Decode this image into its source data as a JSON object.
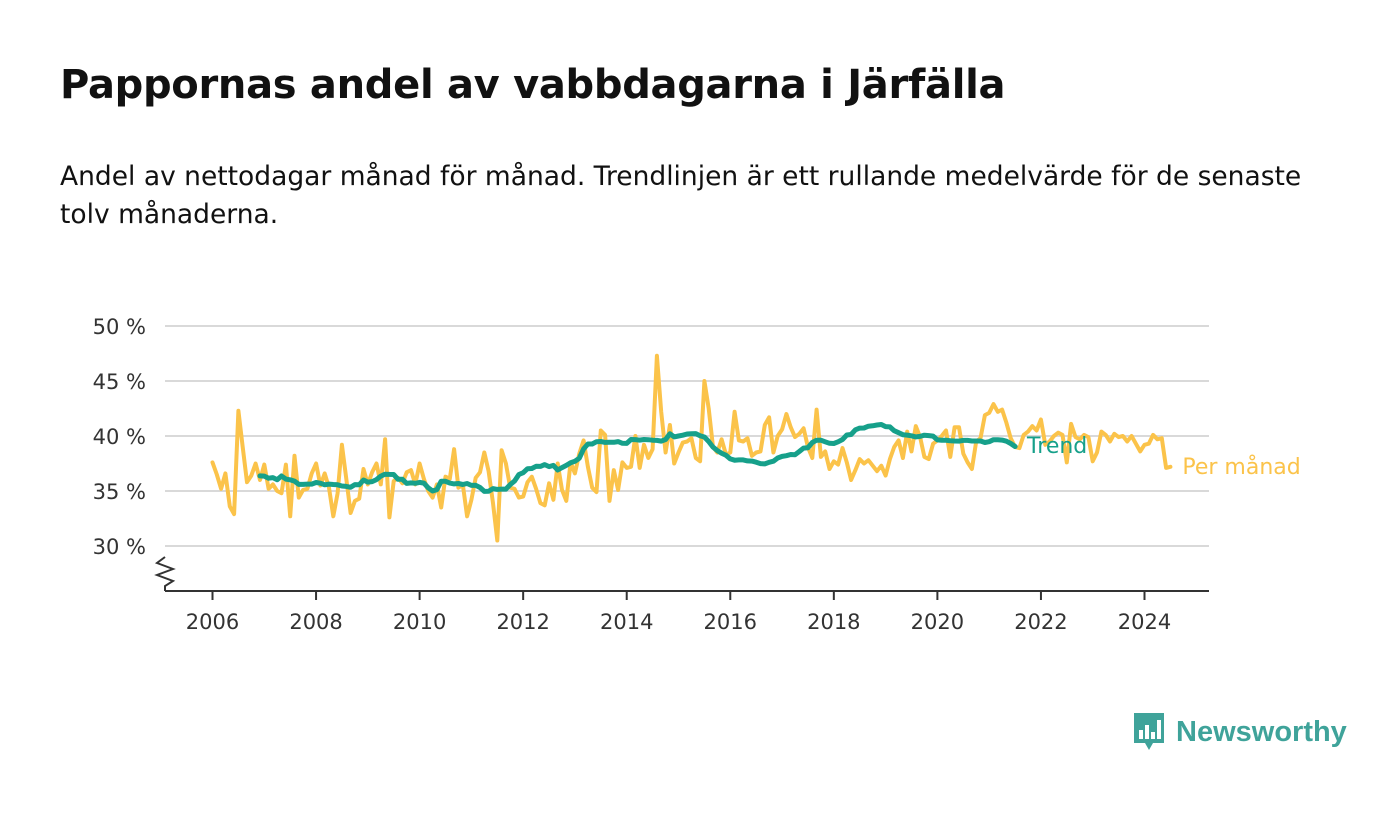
{
  "title": "Pappornas andel av vabbdagarna i Järfälla",
  "subtitle": "Andel av nettodagar månad för månad. Trendlinjen är ett rullande medelvärde för de senaste tolv månaderna.",
  "brand": {
    "name": "Newsworthy",
    "icon": "newsworthy-logo-icon",
    "color": "#3fa39a"
  },
  "chart_data": {
    "type": "line",
    "x_start": "2006-01",
    "x_step": "month",
    "xlim": [
      2006,
      2024.4
    ],
    "ylim": [
      30,
      50
    ],
    "y_axis_break": true,
    "yticks": [
      30,
      35,
      40,
      45,
      50
    ],
    "ytick_labels": [
      "30 %",
      "35 %",
      "40 %",
      "45 %",
      "50 %"
    ],
    "xticks": [
      2006,
      2008,
      2010,
      2012,
      2014,
      2016,
      2018,
      2020,
      2022,
      2024
    ],
    "xtick_labels": [
      "2006",
      "2008",
      "2010",
      "2012",
      "2014",
      "2016",
      "2018",
      "2020",
      "2022",
      "2024"
    ],
    "grid": true,
    "legend": "direct labels at line ends (right)",
    "series": [
      {
        "name": "Per månad",
        "color": "#fbc34a",
        "values": [
          37.6,
          36.5,
          35.2,
          36.6,
          33.6,
          32.9,
          42.3,
          39.0,
          35.8,
          36.4,
          37.5,
          36.0,
          37.4,
          35.2,
          35.6,
          35.0,
          34.8,
          37.4,
          32.7,
          38.2,
          34.4,
          35.1,
          35.2,
          36.6,
          37.5,
          35.5,
          36.6,
          35.3,
          32.7,
          34.8,
          39.2,
          36.1,
          33.0,
          34.1,
          34.3,
          37.0,
          35.6,
          36.7,
          37.5,
          35.6,
          39.7,
          32.6,
          35.9,
          36.2,
          35.7,
          36.7,
          36.9,
          35.6,
          37.5,
          36.1,
          35.0,
          34.4,
          35.6,
          33.5,
          36.3,
          36.1,
          38.8,
          35.3,
          35.6,
          32.7,
          34.2,
          36.2,
          36.7,
          38.5,
          36.8,
          33.9,
          30.5,
          38.7,
          37.5,
          35.3,
          35.2,
          34.4,
          34.5,
          35.8,
          36.3,
          35.2,
          33.9,
          33.7,
          35.7,
          34.2,
          37.5,
          35.1,
          34.1,
          37.6,
          36.6,
          38.4,
          39.6,
          37.2,
          35.3,
          34.9,
          40.5,
          40.1,
          34.1,
          36.9,
          35.1,
          37.6,
          37.1,
          37.2,
          40.0,
          37.1,
          39.2,
          38.0,
          38.8,
          47.3,
          42.2,
          38.5,
          41.0,
          37.5,
          38.5,
          39.4,
          39.5,
          39.8,
          38.0,
          37.7,
          45.0,
          42.5,
          39.0,
          38.5,
          39.7,
          38.3,
          38.5,
          42.2,
          39.6,
          39.5,
          39.8,
          38.2,
          38.5,
          38.6,
          41.0,
          41.7,
          38.5,
          40.0,
          40.6,
          42.0,
          40.8,
          39.9,
          40.2,
          40.7,
          39.0,
          38.0,
          42.4,
          38.1,
          38.6,
          37.0,
          37.7,
          37.4,
          38.9,
          37.6,
          36.0,
          36.9,
          37.9,
          37.5,
          37.8,
          37.3,
          36.8,
          37.3,
          36.4,
          37.9,
          39.0,
          39.6,
          38.0,
          40.4,
          38.6,
          40.9,
          39.9,
          38.1,
          37.9,
          39.3,
          39.6,
          40.0,
          40.5,
          38.1,
          40.8,
          40.8,
          38.4,
          37.6,
          37.0,
          39.5,
          39.8,
          41.9,
          42.1,
          42.9,
          42.2,
          42.4,
          41.2,
          39.8,
          39.0,
          38.9,
          40.1,
          40.4,
          40.9,
          40.5,
          41.5,
          39.2,
          39.5,
          40.0,
          40.3,
          40.1,
          37.6,
          41.1,
          39.9,
          39.7,
          40.1,
          39.9,
          37.7,
          38.5,
          40.4,
          40.1,
          39.5,
          40.2,
          39.9,
          40.0,
          39.5,
          40.0,
          39.3,
          38.6,
          39.2,
          39.3,
          40.1,
          39.7,
          39.8,
          37.1,
          37.2
        ]
      },
      {
        "name": "Trend",
        "color": "#16a08a",
        "start": "2006-12",
        "values": [
          36.37,
          36.35,
          36.16,
          36.22,
          36.03,
          36.36,
          36.08,
          36.02,
          35.9,
          35.6,
          35.6,
          35.63,
          35.63,
          35.77,
          35.71,
          35.56,
          35.63,
          35.59,
          35.56,
          35.45,
          35.42,
          35.34,
          35.58,
          35.56,
          36.0,
          35.81,
          35.85,
          36.04,
          36.35,
          36.53,
          36.51,
          36.5,
          36.06,
          36.06,
          35.69,
          35.74,
          35.7,
          35.78,
          35.72,
          35.29,
          35.0,
          35.13,
          35.89,
          35.88,
          35.72,
          35.65,
          35.68,
          35.59,
          35.68,
          35.51,
          35.52,
          35.32,
          34.96,
          34.97,
          35.22,
          35.15,
          35.17,
          35.17,
          35.58,
          35.9,
          36.5,
          36.66,
          37.03,
          37.05,
          37.25,
          37.24,
          37.4,
          37.22,
          37.33,
          36.91,
          37.13,
          37.33,
          37.57,
          37.7,
          37.98,
          38.83,
          39.27,
          39.27,
          39.48,
          39.5,
          39.42,
          39.43,
          39.43,
          39.49,
          39.34,
          39.33,
          39.68,
          39.67,
          39.63,
          39.68,
          39.66,
          39.62,
          39.6,
          39.54,
          39.68,
          40.21,
          39.92,
          40.0,
          40.07,
          40.18,
          40.21,
          40.22,
          40.02,
          39.91,
          39.5,
          38.99,
          38.67,
          38.44,
          38.25,
          37.92,
          37.8,
          37.83,
          37.83,
          37.74,
          37.72,
          37.62,
          37.49,
          37.46,
          37.61,
          37.71,
          38.0,
          38.15,
          38.21,
          38.32,
          38.3,
          38.59,
          38.9,
          38.94,
          39.41,
          39.62,
          39.62,
          39.47,
          39.34,
          39.32,
          39.47,
          39.68,
          40.09,
          40.14,
          40.56,
          40.72,
          40.73,
          40.89,
          40.93,
          41.0,
          41.05,
          40.85,
          40.83,
          40.48,
          40.3,
          40.12,
          40.08,
          40.02,
          39.92,
          39.96,
          40.07,
          40.04,
          39.99,
          39.65,
          39.61,
          39.61,
          39.57,
          39.55,
          39.54,
          39.6,
          39.6,
          39.55,
          39.55,
          39.55,
          39.41,
          39.48,
          39.66,
          39.66,
          39.63,
          39.53,
          39.32,
          39.05
        ]
      }
    ]
  }
}
